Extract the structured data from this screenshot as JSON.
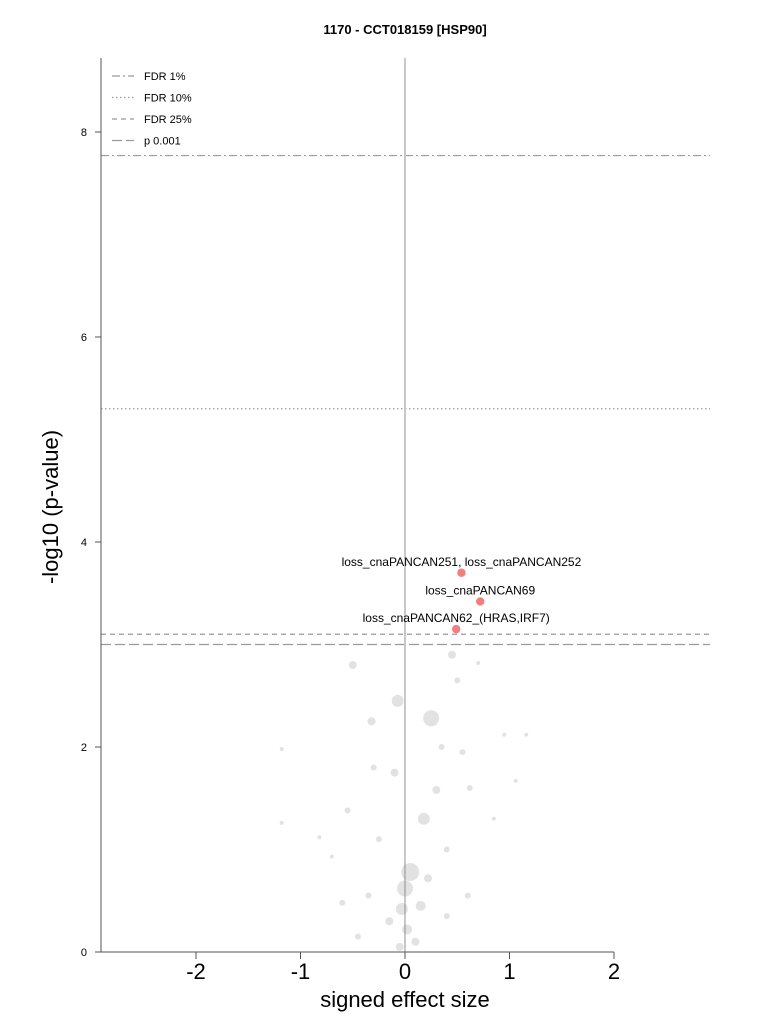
{
  "chart_data": {
    "type": "scatter",
    "title": "1170 - CCT018159 [HSP90]",
    "xlabel": "signed effect size",
    "ylabel": "-log10 (p-value)",
    "xlim": [
      -2.9,
      2.9
    ],
    "ylim": [
      0,
      8.75
    ],
    "x_ticks": [
      "-2",
      "-1",
      "0",
      "1",
      "2"
    ],
    "y_ticks": [
      "0",
      "2",
      "4",
      "6",
      "8"
    ],
    "thresholds": [
      {
        "name": "FDR 1%",
        "y": 7.77,
        "style": "dashdot"
      },
      {
        "name": "FDR 10%",
        "y": 5.3,
        "style": "dotted"
      },
      {
        "name": "FDR 25%",
        "y": 3.1,
        "style": "dashed"
      },
      {
        "name": "p 0.001",
        "y": 3.0,
        "style": "longdash"
      }
    ],
    "legend": {
      "position": "top-left",
      "entries": [
        "FDR 1%",
        "FDR 10%",
        "FDR 25%",
        "p 0.001"
      ]
    },
    "highlighted": [
      {
        "label": "loss_cnaPANCAN251, loss_cnaPANCAN252",
        "x": 0.54,
        "y": 3.7,
        "color": "#f08080"
      },
      {
        "label": "loss_cnaPANCAN69",
        "x": 0.72,
        "y": 3.42,
        "color": "#f08080"
      },
      {
        "label": "loss_cnaPANCAN62_(HRAS,IRF7)",
        "x": 0.49,
        "y": 3.15,
        "color": "#f08080"
      }
    ],
    "background_points": [
      {
        "x": -1.18,
        "y": 1.98,
        "size": 2
      },
      {
        "x": -1.18,
        "y": 1.26,
        "size": 2
      },
      {
        "x": -0.5,
        "y": 2.8,
        "size": 4
      },
      {
        "x": -0.32,
        "y": 2.25,
        "size": 4
      },
      {
        "x": -0.07,
        "y": 2.45,
        "size": 6
      },
      {
        "x": 0.25,
        "y": 2.28,
        "size": 8
      },
      {
        "x": -0.3,
        "y": 1.8,
        "size": 3
      },
      {
        "x": -0.1,
        "y": 1.75,
        "size": 4
      },
      {
        "x": 0.45,
        "y": 2.9,
        "size": 4
      },
      {
        "x": 0.5,
        "y": 2.65,
        "size": 3
      },
      {
        "x": 0.7,
        "y": 2.82,
        "size": 2
      },
      {
        "x": 0.95,
        "y": 2.12,
        "size": 2
      },
      {
        "x": 1.06,
        "y": 1.67,
        "size": 2
      },
      {
        "x": 1.16,
        "y": 2.12,
        "size": 2
      },
      {
        "x": 0.18,
        "y": 1.3,
        "size": 6
      },
      {
        "x": 0.05,
        "y": 0.78,
        "size": 9
      },
      {
        "x": 0.0,
        "y": 0.62,
        "size": 8
      },
      {
        "x": -0.03,
        "y": 0.42,
        "size": 6
      },
      {
        "x": 0.02,
        "y": 0.22,
        "size": 5
      },
      {
        "x": 0.3,
        "y": 1.58,
        "size": 4
      },
      {
        "x": 0.4,
        "y": 1.0,
        "size": 3
      },
      {
        "x": -0.25,
        "y": 1.1,
        "size": 3
      },
      {
        "x": -0.55,
        "y": 1.38,
        "size": 3
      },
      {
        "x": -0.7,
        "y": 0.93,
        "size": 2
      },
      {
        "x": -0.82,
        "y": 1.12,
        "size": 2
      },
      {
        "x": 0.62,
        "y": 1.6,
        "size": 3
      },
      {
        "x": 0.85,
        "y": 1.3,
        "size": 2
      },
      {
        "x": 0.55,
        "y": 1.95,
        "size": 3
      },
      {
        "x": 0.35,
        "y": 2.0,
        "size": 3
      },
      {
        "x": 0.15,
        "y": 0.45,
        "size": 5
      },
      {
        "x": -0.15,
        "y": 0.3,
        "size": 4
      },
      {
        "x": 0.1,
        "y": 0.1,
        "size": 4
      },
      {
        "x": -0.05,
        "y": 0.05,
        "size": 4
      },
      {
        "x": 0.22,
        "y": 0.72,
        "size": 4
      },
      {
        "x": -0.35,
        "y": 0.55,
        "size": 3
      },
      {
        "x": 0.4,
        "y": 0.35,
        "size": 3
      },
      {
        "x": -0.45,
        "y": 0.15,
        "size": 3
      },
      {
        "x": 0.6,
        "y": 0.55,
        "size": 3
      },
      {
        "x": -0.6,
        "y": 0.48,
        "size": 3
      }
    ]
  }
}
